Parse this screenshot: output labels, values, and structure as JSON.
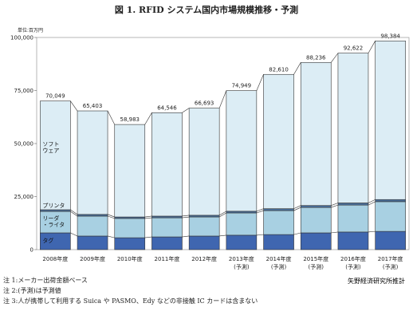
{
  "chart_data": {
    "type": "stacked_bar",
    "title": "図 1. RFID システム国内市場規模推移・予測",
    "unit_label": "単位:百万円",
    "categories": [
      "2008年度",
      "2009年度",
      "2010年度",
      "2011年度",
      "2012年度",
      "2013年度",
      "2014年度",
      "2015年度",
      "2016年度",
      "2017年度"
    ],
    "sublabels": [
      null,
      null,
      null,
      null,
      null,
      "(予測)",
      "(予測)",
      "(予測)",
      "(予測)",
      "(予測)"
    ],
    "series": [
      {
        "name": "タグ",
        "color": "#3f66b0",
        "values": [
          7900,
          6400,
          5600,
          6000,
          6400,
          6800,
          7100,
          7900,
          8300,
          8600
        ]
      },
      {
        "name": "リーダ\n・ライタ",
        "color": "#a8d0e2",
        "values": [
          10100,
          9400,
          9100,
          9000,
          9000,
          10500,
          11300,
          12000,
          12700,
          14000
        ]
      },
      {
        "name": "プリンタ",
        "color": "#4a6f9a",
        "values": [
          800,
          800,
          700,
          800,
          800,
          800,
          900,
          900,
          1000,
          1000
        ]
      },
      {
        "name": "ソフト\nウェア",
        "color": "#dcedf5",
        "values": [
          51249,
          48803,
          43583,
          48746,
          50493,
          56849,
          63310,
          67436,
          70622,
          74784
        ]
      }
    ],
    "totals": [
      70049,
      65403,
      58983,
      64546,
      66693,
      74949,
      82610,
      88236,
      92622,
      98384
    ],
    "total_labels": [
      "70,049",
      "65,403",
      "58,983",
      "64,546",
      "66,693",
      "74,949",
      "82,610",
      "88,236",
      "92,622",
      "98,384"
    ],
    "ylim": [
      0,
      100000
    ],
    "yticks": [
      0,
      {
        "value": 25000,
        "label": "25,000"
      },
      {
        "value": 50000,
        "label": "50,000"
      },
      {
        "value": 75000,
        "label": "75,000"
      },
      {
        "value": 100000,
        "label": "100,000"
      }
    ],
    "notes": [
      "注 1:メーカー出荷金額ベース",
      "注 2:(予測)は予測値",
      "注 3:人が携帯して利用する Suica や PASMO、Edy などの非接触 IC カードは含まない"
    ],
    "source": "矢野経済研究所推計"
  }
}
